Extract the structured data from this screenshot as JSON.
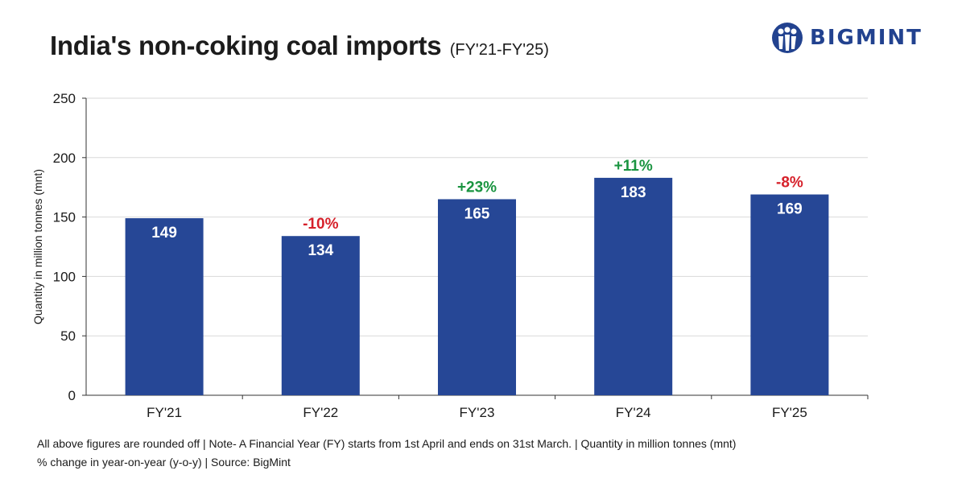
{
  "title": "India's non-coking coal imports",
  "subtitle": "(FY'21-FY'25)",
  "logo_text": "BIGMINT",
  "colors": {
    "bar": "#264796",
    "positive": "#1a9440",
    "negative": "#d6202a",
    "logo": "#22428f"
  },
  "chart_data": {
    "type": "bar",
    "categories": [
      "FY'21",
      "FY'22",
      "FY'23",
      "FY'24",
      "FY'25"
    ],
    "values": [
      149,
      134,
      165,
      183,
      169
    ],
    "value_labels": [
      "149",
      "134",
      "165",
      "183",
      "169"
    ],
    "yoy_change": [
      "",
      "-10%",
      "+23%",
      "+11%",
      "-8%"
    ],
    "ylabel": "Quantity in million tonnes (mnt)",
    "ylim": [
      0,
      250
    ],
    "yticks": [
      "0",
      "50",
      "100",
      "150",
      "200",
      "250"
    ],
    "grid": true
  },
  "footnotes": [
    "All above figures are rounded off | Note- A Financial Year (FY) starts from 1st April and ends on 31st March. | Quantity in million tonnes (mnt)",
    "% change in year-on-year (y-o-y) | Source: BigMint"
  ]
}
